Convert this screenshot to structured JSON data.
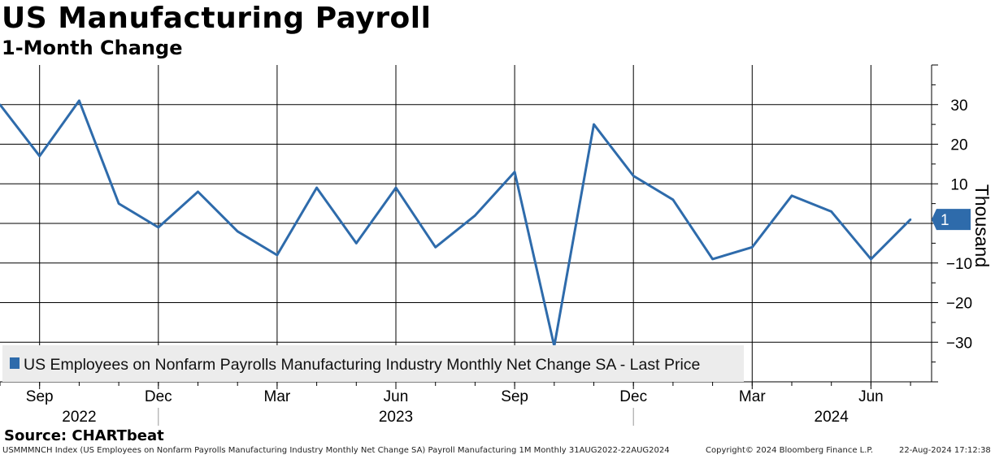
{
  "header": {
    "title": "US Manufacturing Payroll",
    "subtitle": "1-Month Change"
  },
  "chart_data": {
    "type": "line",
    "x": [
      "2022-08",
      "2022-09",
      "2022-10",
      "2022-11",
      "2022-12",
      "2023-01",
      "2023-02",
      "2023-03",
      "2023-04",
      "2023-05",
      "2023-06",
      "2023-07",
      "2023-08",
      "2023-09",
      "2023-10",
      "2023-11",
      "2023-12",
      "2024-01",
      "2024-02",
      "2024-03",
      "2024-04",
      "2024-05",
      "2024-06",
      "2024-07"
    ],
    "series": [
      {
        "name": "US Employees on Nonfarm Payrolls Manufacturing Industry Monthly Net Change SA - Last Price",
        "values": [
          30,
          17,
          31,
          5,
          -1,
          8,
          -2,
          -8,
          9,
          -5,
          9,
          -6,
          2,
          13,
          -31,
          25,
          12,
          6,
          -9,
          -6,
          7,
          3,
          -9,
          1
        ],
        "color": "#2e6bab"
      }
    ],
    "ylabel": "Thousand",
    "ylim": [
      -40,
      40
    ],
    "yticks": [
      30,
      20,
      10,
      -10,
      -20,
      -30
    ],
    "xtick_labels": [
      {
        "date": "2022-09",
        "label": "Sep"
      },
      {
        "date": "2022-12",
        "label": "Dec"
      },
      {
        "date": "2023-03",
        "label": "Mar"
      },
      {
        "date": "2023-06",
        "label": "Jun"
      },
      {
        "date": "2023-09",
        "label": "Sep"
      },
      {
        "date": "2023-12",
        "label": "Dec"
      },
      {
        "date": "2024-03",
        "label": "Mar"
      },
      {
        "date": "2024-06",
        "label": "Jun"
      }
    ],
    "year_labels": [
      {
        "date": "2022-10",
        "label": "2022"
      },
      {
        "date": "2023-06",
        "label": "2023"
      },
      {
        "date": "2024-05",
        "label": "2024"
      }
    ],
    "last_value_label": "1",
    "grid": true,
    "legend_position": "bottom-left"
  },
  "footer": {
    "source": "Source: CHARTbeat",
    "ticker_info": "USMMMNCH Index (US Employees on Nonfarm Payrolls Manufacturing Industry Monthly Net Change SA) Payroll Manufacturing 1M  Monthly 31AUG2022-22AUG2024",
    "copyright": "Copyright© 2024 Bloomberg Finance L.P.",
    "timestamp": "22-Aug-2024 17:12:38"
  }
}
